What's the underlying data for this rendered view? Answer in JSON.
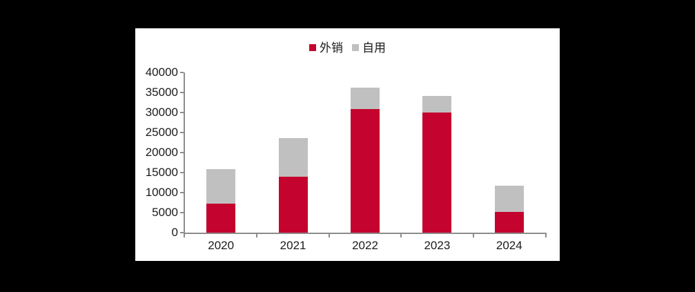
{
  "canvas": {
    "background_color": "#000000",
    "panel_color": "#ffffff"
  },
  "chart_data": {
    "type": "bar",
    "stacked": true,
    "title": "",
    "xlabel": "",
    "ylabel": "",
    "categories": [
      "2020",
      "2021",
      "2022",
      "2023",
      "2024"
    ],
    "series": [
      {
        "name": "外销",
        "color": "#c4032e",
        "values": [
          7200,
          14000,
          30800,
          30000,
          5100
        ]
      },
      {
        "name": "自用",
        "color": "#c1c0c1",
        "values": [
          8600,
          9700,
          5300,
          4100,
          6500
        ]
      }
    ],
    "totals": [
      15800,
      23700,
      36100,
      34100,
      11600
    ],
    "ylim": [
      0,
      40000
    ],
    "ytick_step": 5000,
    "ytick_labels": [
      "40000",
      "35000",
      "30000",
      "25000",
      "20000",
      "15000",
      "10000",
      "5000",
      "0"
    ],
    "legend_position": "top-center",
    "grid": false,
    "axis_color": "#8c8c8c",
    "text_color": "#1a1a1a"
  }
}
